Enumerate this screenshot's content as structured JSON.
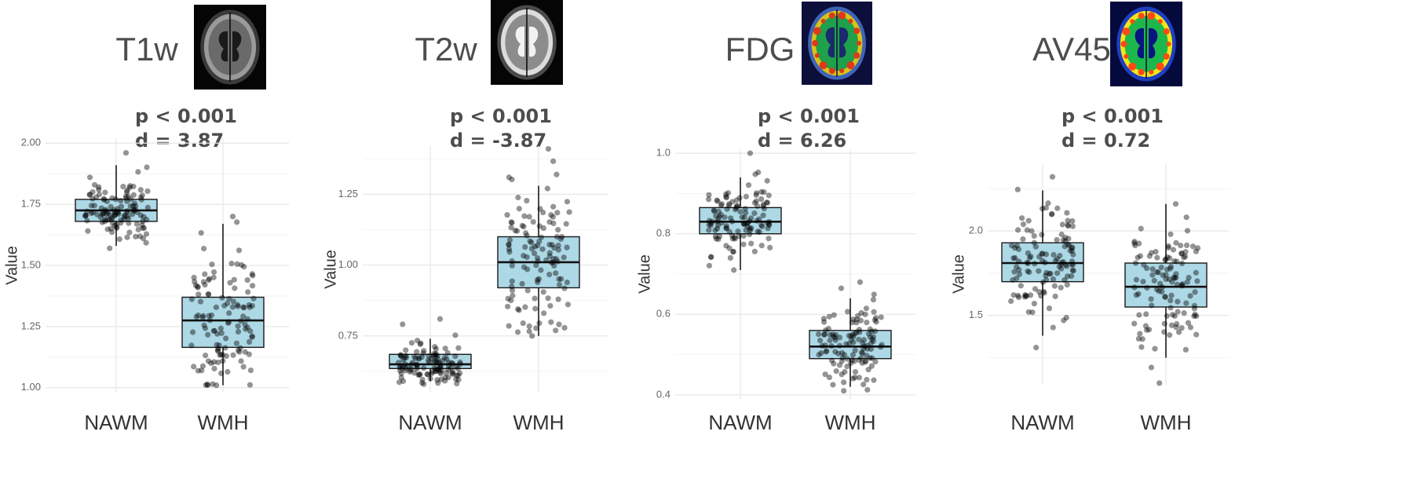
{
  "chart_data": [
    {
      "type": "box",
      "modality": "T1w",
      "image_icon": "brain-mri-t1-icon",
      "p_text": "p < 0.001",
      "d_text": "d = 3.87",
      "ylabel": "Value",
      "categories": [
        "NAWM",
        "WMH"
      ],
      "ylim": [
        0.98,
        2.02
      ],
      "yticks": [
        1.0,
        1.25,
        1.5,
        1.75,
        2.0
      ],
      "ytick_labels": [
        "1.00",
        "1.25",
        "1.50",
        "1.75",
        "2.00"
      ],
      "boxes": [
        {
          "name": "NAWM",
          "min": 1.58,
          "q1": 1.68,
          "median": 1.725,
          "q3": 1.77,
          "max": 1.91,
          "points_range": [
            1.57,
            1.96
          ]
        },
        {
          "name": "WMH",
          "min": 1.01,
          "q1": 1.165,
          "median": 1.275,
          "q3": 1.37,
          "max": 1.67,
          "points_range": [
            1.01,
            1.7
          ]
        }
      ]
    },
    {
      "type": "box",
      "modality": "T2w",
      "image_icon": "brain-mri-t2-icon",
      "p_text": "p < 0.001",
      "d_text": "d = -3.87",
      "ylabel": "Value",
      "categories": [
        "NAWM",
        "WMH"
      ],
      "ylim": [
        0.55,
        1.42
      ],
      "yticks": [
        0.75,
        1.0,
        1.25
      ],
      "ytick_labels": [
        "0.75",
        "1.00",
        "1.25"
      ],
      "boxes": [
        {
          "name": "NAWM",
          "min": 0.59,
          "q1": 0.635,
          "median": 0.65,
          "q3": 0.685,
          "max": 0.74,
          "points_range": [
            0.58,
            0.81
          ]
        },
        {
          "name": "WMH",
          "min": 0.75,
          "q1": 0.92,
          "median": 1.01,
          "q3": 1.1,
          "max": 1.28,
          "points_range": [
            0.75,
            1.41
          ]
        }
      ]
    },
    {
      "type": "box",
      "modality": "FDG",
      "image_icon": "brain-pet-fdg-icon",
      "p_text": "p < 0.001",
      "d_text": "d = 6.26",
      "ylabel": "Value",
      "categories": [
        "NAWM",
        "WMH"
      ],
      "ylim": [
        0.39,
        1.01
      ],
      "yticks": [
        0.4,
        0.6,
        0.8,
        1.0
      ],
      "ytick_labels": [
        "0.4",
        "0.6",
        "0.8",
        "1.0"
      ],
      "boxes": [
        {
          "name": "NAWM",
          "min": 0.71,
          "q1": 0.8,
          "median": 0.83,
          "q3": 0.865,
          "max": 0.94,
          "points_range": [
            0.71,
            1.0
          ]
        },
        {
          "name": "WMH",
          "min": 0.42,
          "q1": 0.49,
          "median": 0.52,
          "q3": 0.56,
          "max": 0.64,
          "points_range": [
            0.41,
            0.68
          ]
        }
      ]
    },
    {
      "type": "box",
      "modality": "AV45",
      "image_icon": "brain-pet-av45-icon",
      "p_text": "p < 0.001",
      "d_text": "d = 0.72",
      "ylabel": "Value",
      "categories": [
        "NAWM",
        "WMH"
      ],
      "ylim": [
        1.09,
        2.4
      ],
      "yticks": [
        1.5,
        2.0
      ],
      "ytick_labels": [
        "1.5",
        "2.0"
      ],
      "boxes": [
        {
          "name": "NAWM",
          "min": 1.38,
          "q1": 1.7,
          "median": 1.81,
          "q3": 1.93,
          "max": 2.24,
          "points_range": [
            1.31,
            2.32
          ]
        },
        {
          "name": "WMH",
          "min": 1.25,
          "q1": 1.55,
          "median": 1.67,
          "q3": 1.81,
          "max": 2.16,
          "points_range": [
            1.1,
            2.16
          ]
        }
      ]
    }
  ]
}
